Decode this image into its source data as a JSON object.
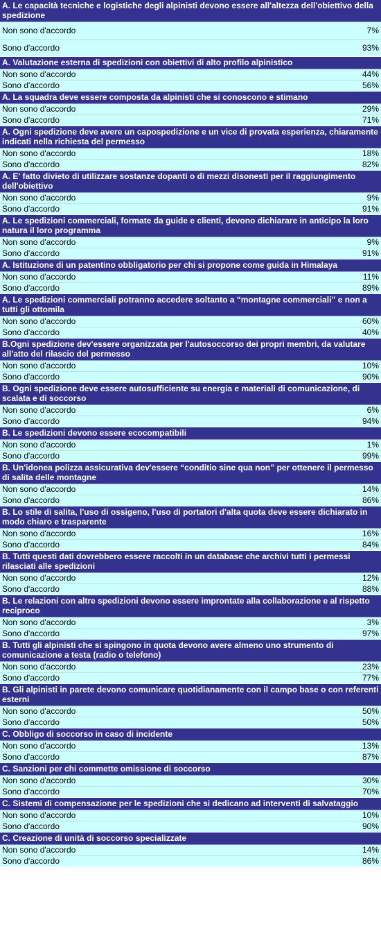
{
  "questions": [
    {
      "q": "A. Le capacità tecniche e logistiche degli alpinisti devono essere all'altezza dell'obiettivo della spedizione",
      "disagree_label": "Non sono d'accordo",
      "disagree": "7%",
      "agree_label": "Sono d'accordo",
      "agree": "93%",
      "tall": true
    },
    {
      "q": "A. Valutazione esterna di spedizioni con obiettivi di alto profilo alpinistico",
      "disagree_label": "Non sono d'accordo",
      "disagree": "44%",
      "agree_label": "Sono d'accordo",
      "agree": "56%",
      "tall": false
    },
    {
      "q": "A. La squadra deve essere composta da alpinisti che si conoscono e stimano",
      "disagree_label": "Non sono d'accordo",
      "disagree": "29%",
      "agree_label": "Sono d'accordo",
      "agree": "71%",
      "tall": false
    },
    {
      "q": "A. Ogni spedizione deve avere un capospedizione e un vice di provata esperienza, chiaramente indicati nella richiesta del permesso",
      "disagree_label": "Non sono d'accordo",
      "disagree": "18%",
      "agree_label": "Sono d'accordo",
      "agree": "82%",
      "tall": false
    },
    {
      "q": "A. E' fatto divieto di utilizzare sostanze dopanti o di mezzi disonesti per il raggiungimento dell'obiettivo",
      "disagree_label": "Non sono d'accordo",
      "disagree": "9%",
      "agree_label": "Sono d'accordo",
      "agree": "91%",
      "tall": false
    },
    {
      "q": "A. Le spedizioni commerciali, formate da guide e clienti, devono dichiarare in anticipo la loro natura il loro programma",
      "disagree_label": "Non sono d'accordo",
      "disagree": "9%",
      "agree_label": "Sono d'accordo",
      "agree": "91%",
      "tall": false
    },
    {
      "q": "A. Istituzione di un patentino obbligatorio per chi si propone come guida in Himalaya",
      "disagree_label": "Non sono d'accordo",
      "disagree": "11%",
      "agree_label": "Sono d'accordo",
      "agree": "89%",
      "tall": false
    },
    {
      "q": "A. Le spedizioni commerciali potranno accedere soltanto a “montagne commerciali” e non a tutti gli ottomila",
      "disagree_label": "Non sono d'accordo",
      "disagree": "60%",
      "agree_label": "Sono d'accordo",
      "agree": "40%",
      "tall": false
    },
    {
      "q": "B.Ogni spedizione dev'essere organizzata per l'autosoccorso dei propri membri, da valutare all'atto del rilascio del permesso",
      "disagree_label": "Non sono d'accordo",
      "disagree": "10%",
      "agree_label": "Sono d'accordo",
      "agree": "90%",
      "tall": false
    },
    {
      "q": "B. Ogni spedizione deve essere autosufficiente su energia e materiali di comunicazione, di scalata e di soccorso",
      "disagree_label": "Non sono d'accordo",
      "disagree": "6%",
      "agree_label": "Sono d'accordo",
      "agree": "94%",
      "tall": false
    },
    {
      "q": "B. Le spedizioni devono essere ecocompatibili",
      "disagree_label": "Non sono d'accordo",
      "disagree": "1%",
      "agree_label": "Sono d'accordo",
      "agree": "99%",
      "tall": false
    },
    {
      "q": "B. Un'idonea polizza assicurativa dev'essere “conditio sine qua non” per ottenere il permesso di salita delle montagne",
      "disagree_label": "Non sono d'accordo",
      "disagree": "14%",
      "agree_label": "Sono d'accordo",
      "agree": "86%",
      "tall": false
    },
    {
      "q": "B. Lo stile di salita, l'uso di ossigeno, l'uso di portatori d'alta quota deve essere dichiarato in modo chiaro e trasparente",
      "disagree_label": "Non sono d'accordo",
      "disagree": "16%",
      "agree_label": "Sono d'accordo",
      "agree": "84%",
      "tall": false
    },
    {
      "q": "B. Tutti questi dati dovrebbero essere raccolti in un database che archivi tutti i permessi rilasciati alle spedizioni",
      "disagree_label": "Non sono d'accordo",
      "disagree": "12%",
      "agree_label": "Sono d'accordo",
      "agree": "88%",
      "tall": false
    },
    {
      "q": "B. Le relazioni con altre spedizioni devono essere improntate alla collaborazione e al rispetto reciproco",
      "disagree_label": "Non sono d'accordo",
      "disagree": "3%",
      "agree_label": "Sono d'accordo",
      "agree": "97%",
      "tall": false
    },
    {
      "q": "B. Tutti gli alpinisti che si spingono in quota devono avere almeno uno strumento di comunicazione a testa (radio o telefono)",
      "disagree_label": "Non sono d'accordo",
      "disagree": "23%",
      "agree_label": "Sono d'accordo",
      "agree": "77%",
      "tall": false
    },
    {
      "q": "B. Gli alpinisti in parete devono comunicare quotidianamente con il campo base o con referenti esterni",
      "disagree_label": "Non sono d'accordo",
      "disagree": "50%",
      "agree_label": "Sono d'accordo",
      "agree": "50%",
      "tall": false
    },
    {
      "q": "C. Obbligo di soccorso in caso di incidente",
      "disagree_label": "Non sono d'accordo",
      "disagree": "13%",
      "agree_label": "Sono d'accordo",
      "agree": "87%",
      "tall": false
    },
    {
      "q": "C. Sanzioni per chi commette omissione di soccorso",
      "disagree_label": "Non sono d'accordo",
      "disagree": "30%",
      "agree_label": "Sono d'accordo",
      "agree": "70%",
      "tall": false
    },
    {
      "q": "C. Sistemi di compensazione per le spedizioni che si dedicano ad interventi di salvataggio",
      "disagree_label": "Non sono d'accordo",
      "disagree": "10%",
      "agree_label": "Sono d'accordo",
      "agree": "90%",
      "tall": false
    },
    {
      "q": "C. Creazione di unità di soccorso specializzate",
      "disagree_label": "Non sono d'accordo",
      "disagree": "14%",
      "agree_label": "Sono d'accordo",
      "agree": "86%",
      "tall": false
    }
  ]
}
